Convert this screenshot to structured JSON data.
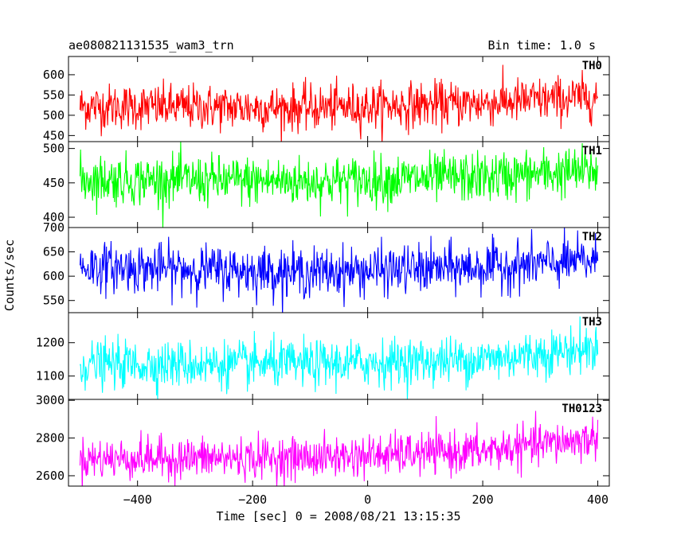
{
  "header": {
    "title": "ae080821131535_wam3_trn",
    "bin_time": "Bin time: 1.0 s"
  },
  "chart_data": {
    "type": "line",
    "title": "ae080821131535_wam3_trn",
    "subtitle": "Bin time: 1.0 s",
    "xlabel": "Time [sec] 0 = 2008/08/21 13:15:35",
    "ylabel": "Counts/sec",
    "xlim": [
      -520,
      420
    ],
    "x_ticks": [
      -400,
      -200,
      0,
      200,
      400
    ],
    "x_tick_labels": [
      "−400",
      "−200",
      "0",
      "200",
      "400"
    ],
    "x_range_data": [
      -500,
      400
    ],
    "bin_seconds": 1.0,
    "panels": [
      {
        "name": "TH0",
        "color": "#ff0000",
        "ylim": [
          435,
          645
        ],
        "yticks": [
          450,
          500,
          550,
          600
        ],
        "ytick_labels": [
          "450",
          "500",
          "550",
          "600"
        ],
        "trend": [
          [
            -500,
            522
          ],
          [
            -100,
            518
          ],
          [
            200,
            530
          ],
          [
            400,
            545
          ]
        ],
        "noise_sd": 28
      },
      {
        "name": "TH1",
        "color": "#00ff00",
        "ylim": [
          385,
          510
        ],
        "yticks": [
          400,
          450,
          500
        ],
        "ytick_labels": [
          "400",
          "450",
          "500"
        ],
        "trend": [
          [
            -500,
            455
          ],
          [
            -100,
            452
          ],
          [
            200,
            458
          ],
          [
            400,
            468
          ]
        ],
        "noise_sd": 18
      },
      {
        "name": "TH2",
        "color": "#0000ff",
        "ylim": [
          525,
          700
        ],
        "yticks": [
          550,
          600,
          650,
          700
        ],
        "ytick_labels": [
          "550",
          "600",
          "650",
          "700"
        ],
        "trend": [
          [
            -500,
            620
          ],
          [
            -100,
            608
          ],
          [
            200,
            618
          ],
          [
            400,
            632
          ]
        ],
        "noise_sd": 25
      },
      {
        "name": "TH3",
        "color": "#00ffff",
        "ylim": [
          1030,
          1290
        ],
        "yticks": [
          1100,
          1200
        ],
        "ytick_labels": [
          "1100",
          "1200"
        ],
        "trend": [
          [
            -500,
            1135
          ],
          [
            -100,
            1135
          ],
          [
            200,
            1150
          ],
          [
            400,
            1185
          ]
        ],
        "noise_sd": 35
      },
      {
        "name": "TH0123",
        "color": "#ff00ff",
        "ylim": [
          2545,
          3005
        ],
        "yticks": [
          2600,
          2800,
          3000
        ],
        "ytick_labels": [
          "2600",
          "2800",
          "3000"
        ],
        "trend": [
          [
            -500,
            2690
          ],
          [
            -100,
            2695
          ],
          [
            200,
            2730
          ],
          [
            400,
            2800
          ]
        ],
        "noise_sd": 55
      }
    ]
  }
}
